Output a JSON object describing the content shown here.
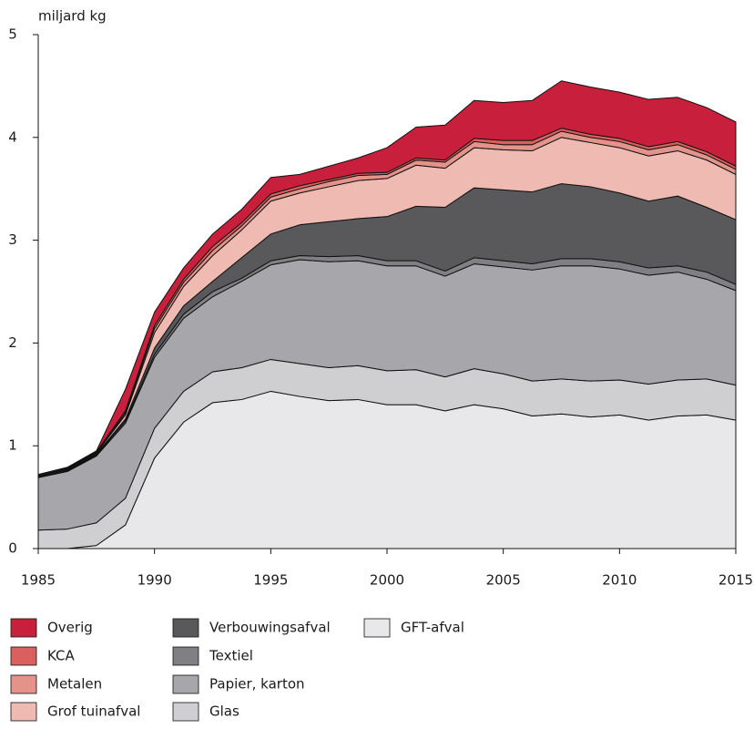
{
  "chart_data": {
    "type": "stacked_area",
    "ylabel": "miljard kg",
    "x": [
      1985,
      1986.25,
      1987.5,
      1988.75,
      1990,
      1991.25,
      1992.5,
      1993.75,
      1995,
      1996.25,
      1997.5,
      1998.75,
      2000,
      2001.25,
      2002.5,
      2003.75,
      2005,
      2006.25,
      2007.5,
      2008.75,
      2010,
      2011.25,
      2012.5,
      2013.75,
      2015
    ],
    "xlim": [
      1985,
      2015
    ],
    "xticks": [
      1985,
      1990,
      1995,
      2000,
      2005,
      2010,
      2015
    ],
    "ylim": [
      0,
      5
    ],
    "yticks": [
      0,
      1,
      2,
      3,
      4,
      5
    ],
    "series": [
      {
        "name": "Overig",
        "color": "#c8203c",
        "values": [
          0,
          0,
          0.01,
          0.21,
          0.13,
          0.11,
          0.12,
          0.13,
          0.16,
          0.11,
          0.13,
          0.15,
          0.24,
          0.3,
          0.34,
          0.37,
          0.37,
          0.39,
          0.46,
          0.46,
          0.45,
          0.46,
          0.43,
          0.43,
          0.43
        ]
      },
      {
        "name": "KCA",
        "color": "#d9605f",
        "values": [
          0.01,
          0.01,
          0.01,
          0.02,
          0.03,
          0.03,
          0.04,
          0.03,
          0.03,
          0.03,
          0.02,
          0.02,
          0.02,
          0.02,
          0.02,
          0.03,
          0.04,
          0.04,
          0.03,
          0.03,
          0.03,
          0.03,
          0.03,
          0.03,
          0.03
        ]
      },
      {
        "name": "Metalen",
        "color": "#e4938a",
        "values": [
          0,
          0,
          0,
          0.02,
          0.04,
          0.04,
          0.05,
          0.04,
          0.04,
          0.04,
          0.05,
          0.05,
          0.04,
          0.05,
          0.06,
          0.06,
          0.05,
          0.06,
          0.06,
          0.05,
          0.06,
          0.06,
          0.06,
          0.05,
          0.05
        ]
      },
      {
        "name": "Grof tuinafval",
        "color": "#efbab2",
        "values": [
          0.01,
          0.01,
          0.01,
          0.04,
          0.15,
          0.19,
          0.25,
          0.27,
          0.32,
          0.31,
          0.34,
          0.37,
          0.37,
          0.4,
          0.38,
          0.39,
          0.39,
          0.4,
          0.45,
          0.43,
          0.44,
          0.44,
          0.44,
          0.46,
          0.44
        ]
      },
      {
        "name": "Verbouwingsafval",
        "color": "#59585b",
        "values": [
          0,
          0.01,
          0.01,
          0.02,
          0.06,
          0.08,
          0.1,
          0.2,
          0.26,
          0.3,
          0.34,
          0.36,
          0.43,
          0.53,
          0.62,
          0.68,
          0.69,
          0.7,
          0.73,
          0.7,
          0.67,
          0.65,
          0.68,
          0.63,
          0.63
        ]
      },
      {
        "name": "Textiel",
        "color": "#807f83",
        "values": [
          0.01,
          0.01,
          0.01,
          0.02,
          0.03,
          0.04,
          0.05,
          0.03,
          0.04,
          0.04,
          0.05,
          0.05,
          0.05,
          0.05,
          0.05,
          0.06,
          0.06,
          0.06,
          0.07,
          0.07,
          0.07,
          0.07,
          0.06,
          0.07,
          0.06
        ]
      },
      {
        "name": "Papier, karton",
        "color": "#a7a6aa",
        "values": [
          0.51,
          0.56,
          0.65,
          0.73,
          0.69,
          0.71,
          0.73,
          0.84,
          0.92,
          1.01,
          1.03,
          1.02,
          1.02,
          1.01,
          0.98,
          1.02,
          1.04,
          1.08,
          1.1,
          1.12,
          1.08,
          1.06,
          1.05,
          0.97,
          0.92
        ]
      },
      {
        "name": "Glas",
        "color": "#cfcfd1",
        "values": [
          0.18,
          0.19,
          0.22,
          0.26,
          0.29,
          0.3,
          0.3,
          0.31,
          0.31,
          0.32,
          0.32,
          0.33,
          0.33,
          0.34,
          0.33,
          0.35,
          0.34,
          0.34,
          0.34,
          0.35,
          0.34,
          0.35,
          0.35,
          0.35,
          0.34
        ]
      },
      {
        "name": "GFT-afval",
        "color": "#e8e8ea",
        "values": [
          0,
          0,
          0.03,
          0.23,
          0.88,
          1.23,
          1.42,
          1.45,
          1.53,
          1.48,
          1.44,
          1.45,
          1.4,
          1.4,
          1.34,
          1.4,
          1.36,
          1.29,
          1.31,
          1.28,
          1.3,
          1.25,
          1.29,
          1.3,
          1.25
        ]
      }
    ]
  }
}
